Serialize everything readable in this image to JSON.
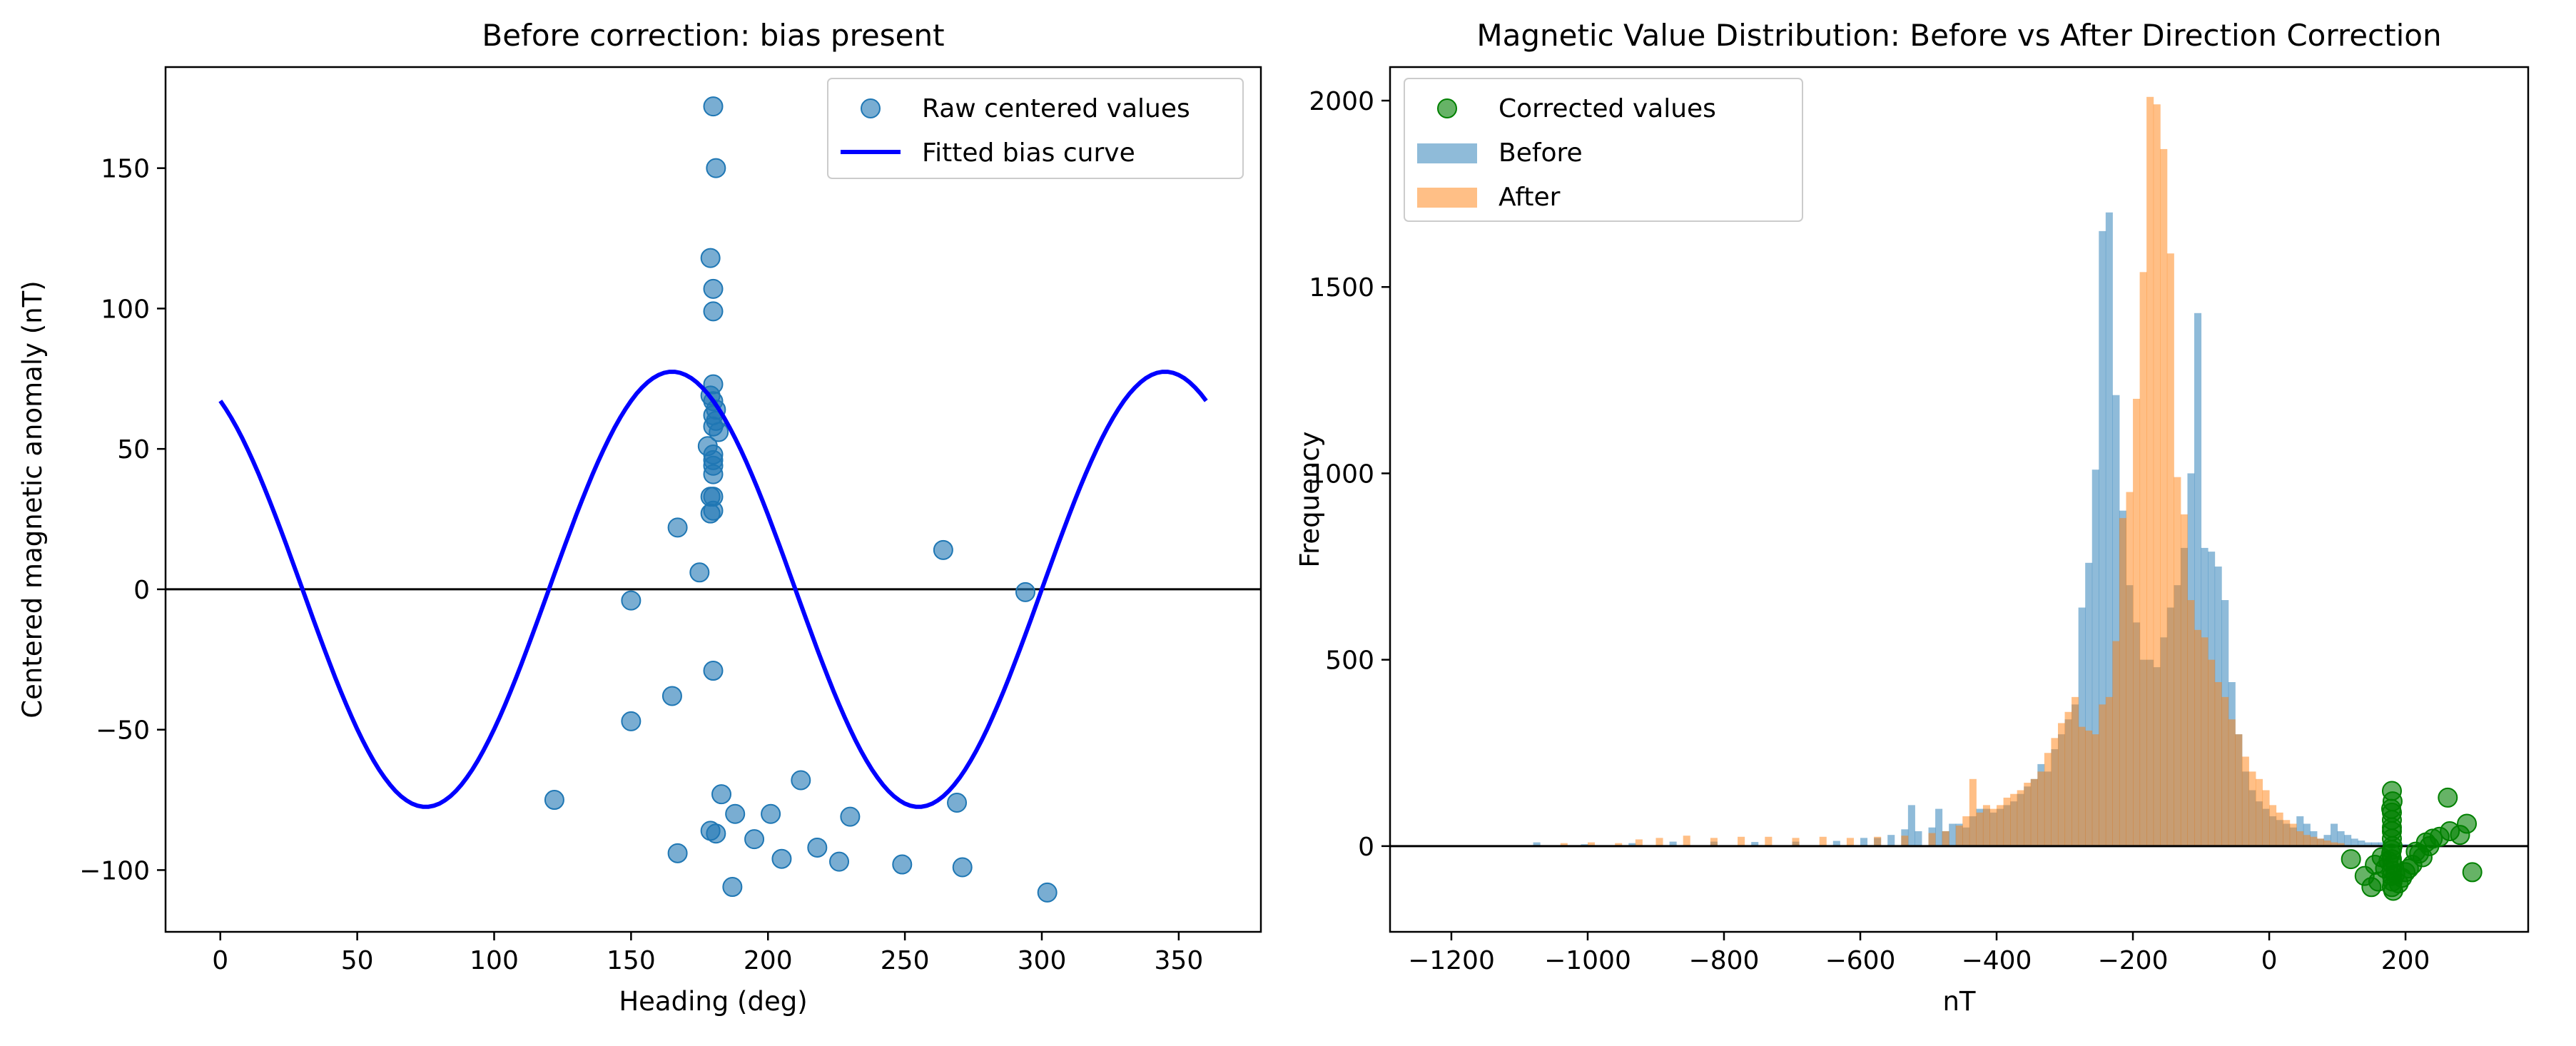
{
  "chart_data": [
    {
      "type": "scatter",
      "title": "Before correction: bias present",
      "xlabel": "Heading (deg)",
      "ylabel": "Centered magnetic anomaly (nT)",
      "xlim": [
        -20,
        380
      ],
      "ylim": [
        -122,
        186
      ],
      "xticks": [
        0,
        50,
        100,
        150,
        200,
        250,
        300,
        350
      ],
      "yticks": [
        -100,
        -50,
        0,
        50,
        100,
        150
      ],
      "zero_line": 0,
      "legend": {
        "placement": "top-right",
        "entries": [
          "Raw centered values",
          "Fitted bias curve"
        ]
      },
      "colors": {
        "points": "#1f77b4",
        "curve": "#0000ff"
      },
      "series": [
        {
          "name": "Raw centered values",
          "kind": "scatter",
          "points": [
            [
              180,
              172
            ],
            [
              181,
              150
            ],
            [
              179,
              118
            ],
            [
              180,
              107
            ],
            [
              180,
              99
            ],
            [
              180,
              73
            ],
            [
              179,
              69
            ],
            [
              180,
              67
            ],
            [
              181,
              64
            ],
            [
              180,
              62
            ],
            [
              181,
              60
            ],
            [
              180,
              58
            ],
            [
              182,
              56
            ],
            [
              178,
              51
            ],
            [
              180,
              48
            ],
            [
              180,
              46
            ],
            [
              180,
              44
            ],
            [
              180,
              41
            ],
            [
              180,
              33
            ],
            [
              179,
              33
            ],
            [
              180,
              28
            ],
            [
              179,
              27
            ],
            [
              167,
              22
            ],
            [
              175,
              6
            ],
            [
              264,
              14
            ],
            [
              150,
              -4
            ],
            [
              294,
              -1
            ],
            [
              180,
              -29
            ],
            [
              165,
              -38
            ],
            [
              150,
              -47
            ],
            [
              122,
              -75
            ],
            [
              183,
              -73
            ],
            [
              188,
              -80
            ],
            [
              201,
              -80
            ],
            [
              212,
              -68
            ],
            [
              230,
              -81
            ],
            [
              269,
              -76
            ],
            [
              179,
              -86
            ],
            [
              181,
              -87
            ],
            [
              195,
              -89
            ],
            [
              218,
              -92
            ],
            [
              167,
              -94
            ],
            [
              205,
              -96
            ],
            [
              226,
              -97
            ],
            [
              249,
              -98
            ],
            [
              271,
              -99
            ],
            [
              187,
              -106
            ],
            [
              302,
              -108
            ]
          ]
        },
        {
          "name": "Fitted bias curve",
          "kind": "line",
          "model": {
            "amplitude": 77.5,
            "period_deg": 180,
            "phase_deg": 165,
            "x_range": [
              0,
              360
            ]
          }
        }
      ]
    },
    {
      "type": "bar",
      "subtype": "histogram",
      "title": "Magnetic Value Distribution: Before vs After Direction Correction",
      "xlabel": "nT",
      "ylabel": "Frequency",
      "xlim": [
        -1290,
        380
      ],
      "ylim": [
        -230,
        2090
      ],
      "xticks": [
        -1200,
        -1000,
        -800,
        -600,
        -400,
        -200,
        0,
        200
      ],
      "yticks": [
        0,
        500,
        1000,
        1500,
        2000
      ],
      "zero_line": 0,
      "legend": {
        "placement": "top-left",
        "entries": [
          "Corrected values",
          "Before",
          "After"
        ]
      },
      "colors": {
        "before": "#1f77b4",
        "after": "#ff7f0e",
        "corrected": "#008000"
      },
      "series": [
        {
          "name": "Before",
          "kind": "bars",
          "bin_width": 10,
          "bars": [
            [
              -1080,
              10
            ],
            [
              -1010,
              5
            ],
            [
              -940,
              8
            ],
            [
              -880,
              12
            ],
            [
              -820,
              12
            ],
            [
              -760,
              11
            ],
            [
              -700,
              12
            ],
            [
              -640,
              14
            ],
            [
              -600,
              22
            ],
            [
              -580,
              22
            ],
            [
              -560,
              30
            ],
            [
              -540,
              45
            ],
            [
              -530,
              110
            ],
            [
              -520,
              40
            ],
            [
              -500,
              50
            ],
            [
              -490,
              100
            ],
            [
              -480,
              40
            ],
            [
              -470,
              60
            ],
            [
              -460,
              60
            ],
            [
              -450,
              50
            ],
            [
              -440,
              80
            ],
            [
              -430,
              100
            ],
            [
              -420,
              100
            ],
            [
              -410,
              90
            ],
            [
              -400,
              100
            ],
            [
              -390,
              110
            ],
            [
              -380,
              120
            ],
            [
              -370,
              140
            ],
            [
              -360,
              160
            ],
            [
              -350,
              180
            ],
            [
              -340,
              220
            ],
            [
              -330,
              200
            ],
            [
              -320,
              260
            ],
            [
              -310,
              300
            ],
            [
              -300,
              340
            ],
            [
              -290,
              380
            ],
            [
              -280,
              640
            ],
            [
              -270,
              760
            ],
            [
              -260,
              1010
            ],
            [
              -250,
              1650
            ],
            [
              -240,
              1700
            ],
            [
              -230,
              1210
            ],
            [
              -220,
              900
            ],
            [
              -210,
              700
            ],
            [
              -200,
              600
            ],
            [
              -190,
              500
            ],
            [
              -180,
              500
            ],
            [
              -170,
              480
            ],
            [
              -160,
              560
            ],
            [
              -150,
              640
            ],
            [
              -140,
              700
            ],
            [
              -130,
              800
            ],
            [
              -120,
              1000
            ],
            [
              -110,
              1430
            ],
            [
              -100,
              800
            ],
            [
              -90,
              790
            ],
            [
              -80,
              750
            ],
            [
              -70,
              660
            ],
            [
              -60,
              440
            ],
            [
              -50,
              300
            ],
            [
              -40,
              200
            ],
            [
              -30,
              150
            ],
            [
              -20,
              120
            ],
            [
              -10,
              100
            ],
            [
              0,
              80
            ],
            [
              10,
              70
            ],
            [
              20,
              60
            ],
            [
              30,
              50
            ],
            [
              40,
              80
            ],
            [
              50,
              60
            ],
            [
              60,
              40
            ],
            [
              70,
              20
            ],
            [
              80,
              30
            ],
            [
              90,
              60
            ],
            [
              100,
              40
            ],
            [
              110,
              30
            ],
            [
              120,
              20
            ],
            [
              130,
              15
            ],
            [
              140,
              10
            ],
            [
              150,
              10
            ],
            [
              160,
              10
            ],
            [
              170,
              5
            ],
            [
              180,
              5
            ],
            [
              190,
              5
            ],
            [
              200,
              5
            ]
          ]
        },
        {
          "name": "After",
          "kind": "bars",
          "bin_width": 10,
          "bars": [
            [
              -1040,
              8
            ],
            [
              -1000,
              10
            ],
            [
              -960,
              8
            ],
            [
              -930,
              18
            ],
            [
              -900,
              22
            ],
            [
              -860,
              28
            ],
            [
              -820,
              22
            ],
            [
              -780,
              25
            ],
            [
              -740,
              25
            ],
            [
              -700,
              22
            ],
            [
              -660,
              25
            ],
            [
              -620,
              22
            ],
            [
              -580,
              25
            ],
            [
              -540,
              28
            ],
            [
              -500,
              35
            ],
            [
              -480,
              40
            ],
            [
              -460,
              55
            ],
            [
              -450,
              80
            ],
            [
              -440,
              180
            ],
            [
              -430,
              90
            ],
            [
              -420,
              110
            ],
            [
              -410,
              100
            ],
            [
              -400,
              110
            ],
            [
              -390,
              130
            ],
            [
              -380,
              140
            ],
            [
              -370,
              150
            ],
            [
              -360,
              170
            ],
            [
              -350,
              180
            ],
            [
              -340,
              200
            ],
            [
              -330,
              250
            ],
            [
              -320,
              290
            ],
            [
              -310,
              330
            ],
            [
              -300,
              360
            ],
            [
              -290,
              400
            ],
            [
              -280,
              320
            ],
            [
              -270,
              310
            ],
            [
              -260,
              300
            ],
            [
              -250,
              380
            ],
            [
              -240,
              400
            ],
            [
              -230,
              550
            ],
            [
              -220,
              880
            ],
            [
              -210,
              950
            ],
            [
              -200,
              1200
            ],
            [
              -190,
              1540
            ],
            [
              -180,
              2010
            ],
            [
              -170,
              1990
            ],
            [
              -160,
              1870
            ],
            [
              -150,
              1590
            ],
            [
              -140,
              990
            ],
            [
              -130,
              890
            ],
            [
              -120,
              660
            ],
            [
              -110,
              580
            ],
            [
              -100,
              560
            ],
            [
              -90,
              500
            ],
            [
              -80,
              440
            ],
            [
              -70,
              400
            ],
            [
              -60,
              340
            ],
            [
              -50,
              300
            ],
            [
              -40,
              240
            ],
            [
              -30,
              200
            ],
            [
              -20,
              180
            ],
            [
              -10,
              150
            ],
            [
              0,
              110
            ],
            [
              10,
              90
            ],
            [
              20,
              70
            ],
            [
              30,
              60
            ],
            [
              40,
              40
            ],
            [
              50,
              30
            ],
            [
              60,
              25
            ],
            [
              70,
              20
            ],
            [
              80,
              15
            ],
            [
              90,
              10
            ],
            [
              100,
              8
            ]
          ]
        },
        {
          "name": "Corrected values",
          "kind": "scatter",
          "points": [
            [
              180,
              148
            ],
            [
              181,
              120
            ],
            [
              179,
              100
            ],
            [
              180,
              90
            ],
            [
              180,
              70
            ],
            [
              180,
              50
            ],
            [
              180,
              40
            ],
            [
              180,
              20
            ],
            [
              181,
              0
            ],
            [
              180,
              -10
            ],
            [
              179,
              -20
            ],
            [
              180,
              -35
            ],
            [
              181,
              -50
            ],
            [
              180,
              -65
            ],
            [
              180,
              -80
            ],
            [
              181,
              -95
            ],
            [
              180,
              -110
            ],
            [
              182,
              -120
            ],
            [
              190,
              -100
            ],
            [
              195,
              -85
            ],
            [
              200,
              -70
            ],
            [
              205,
              -60
            ],
            [
              185,
              -75
            ],
            [
              175,
              -40
            ],
            [
              165,
              -30
            ],
            [
              170,
              -60
            ],
            [
              160,
              -95
            ],
            [
              155,
              -50
            ],
            [
              140,
              -80
            ],
            [
              120,
              -35
            ],
            [
              150,
              -110
            ],
            [
              210,
              -50
            ],
            [
              220,
              -20
            ],
            [
              230,
              10
            ],
            [
              225,
              -30
            ],
            [
              240,
              20
            ],
            [
              250,
              25
            ],
            [
              262,
              130
            ],
            [
              265,
              40
            ],
            [
              280,
              30
            ],
            [
              290,
              60
            ],
            [
              298,
              -70
            ],
            [
              235,
              0
            ],
            [
              215,
              -15
            ]
          ]
        }
      ]
    }
  ]
}
